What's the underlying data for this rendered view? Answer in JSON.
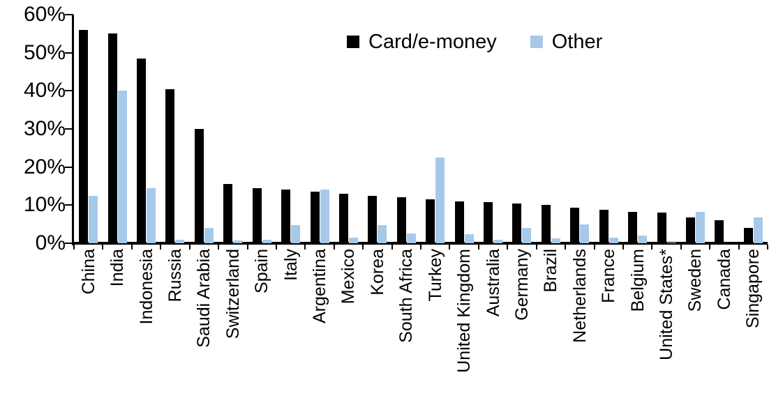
{
  "chart_data": {
    "type": "bar",
    "title": "",
    "xlabel": "",
    "ylabel": "",
    "ylim": [
      0,
      60
    ],
    "grid": false,
    "legend_position": "top-center",
    "yticks": [
      {
        "value": 0,
        "label": "0%"
      },
      {
        "value": 10,
        "label": "10%"
      },
      {
        "value": 20,
        "label": "20%"
      },
      {
        "value": 30,
        "label": "30%"
      },
      {
        "value": 40,
        "label": "40%"
      },
      {
        "value": 50,
        "label": "50%"
      },
      {
        "value": 60,
        "label": "60%"
      }
    ],
    "categories": [
      "China",
      "India",
      "Indonesia",
      "Russia",
      "Saudi Arabia",
      "Switzerland",
      "Spain",
      "Italy",
      "Argentina",
      "Mexico",
      "Korea",
      "South Africa",
      "Turkey",
      "United Kingdom",
      "Australia",
      "Germany",
      "Brazil",
      "Netherlands",
      "France",
      "Belgium",
      "United States*",
      "Sweden",
      "Canada",
      "Singapore"
    ],
    "series": [
      {
        "name": "Card/e-money",
        "color": "#000000",
        "values": [
          56,
          55,
          48.5,
          40.5,
          30,
          15.5,
          14.5,
          14,
          13.5,
          13,
          12.5,
          12,
          11.5,
          11,
          10.8,
          10.5,
          10,
          9.3,
          8.7,
          8.2,
          8,
          6.7,
          6,
          4
        ]
      },
      {
        "name": "Other",
        "color": "#A7C9E9",
        "values": [
          12.5,
          40,
          14.5,
          1,
          4,
          0.8,
          1,
          4.7,
          14,
          1.5,
          4.7,
          2.5,
          22.5,
          2.3,
          1,
          4,
          1.3,
          5,
          1.5,
          2,
          0.2,
          8.2,
          0,
          6.7
        ]
      }
    ]
  }
}
